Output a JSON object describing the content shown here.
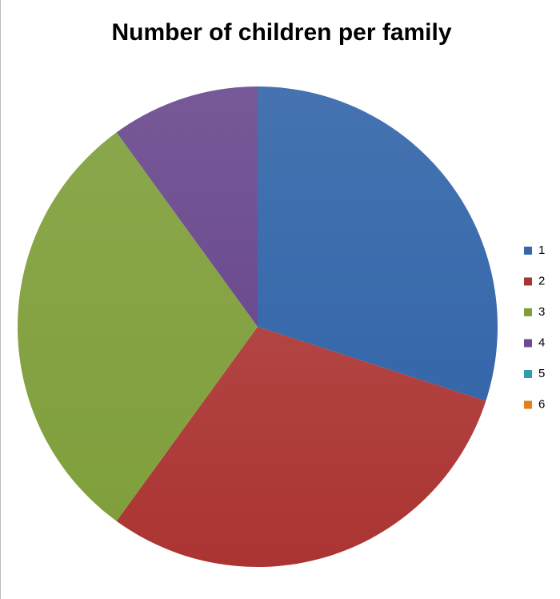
{
  "chart_data": {
    "type": "pie",
    "title": "Number of children per family",
    "categories": [
      "1",
      "2",
      "3",
      "4",
      "5",
      "6"
    ],
    "values": [
      30,
      30,
      30,
      10,
      0,
      0
    ],
    "colors": [
      "#3567aa",
      "#ab3432",
      "#809f3c",
      "#6b4b8f",
      "#2f9cb4",
      "#e47e22"
    ],
    "legend": "right"
  }
}
